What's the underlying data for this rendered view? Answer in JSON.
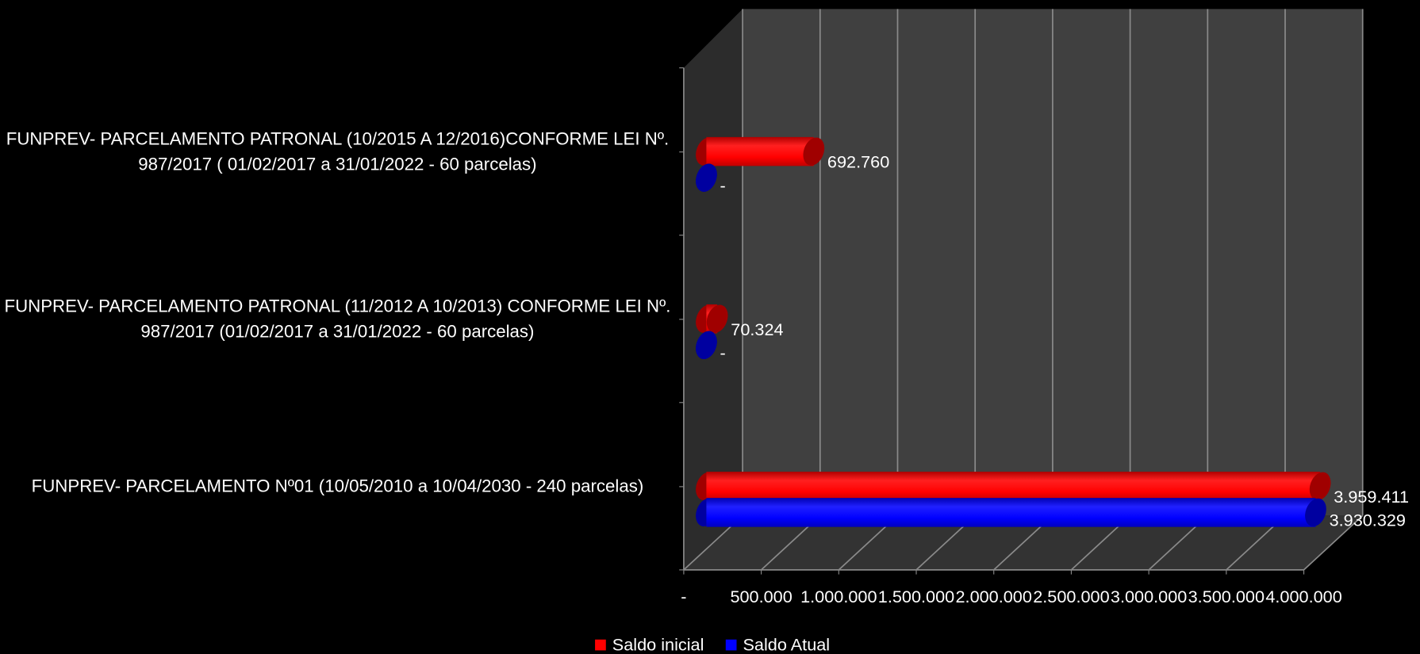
{
  "chart_data": {
    "type": "bar3d-horizontal",
    "categories": [
      "FUNPREV- PARCELAMENTO Nº01 (10/05/2010 a 10/04/2030 - 240 parcelas)",
      "FUNPREV- PARCELAMENTO PATRONAL (11/2012 A 10/2013) CONFORME LEI Nº. 987/2017 (01/02/2017 a 31/01/2022 - 60 parcelas)",
      "FUNPREV- PARCELAMENTO PATRONAL (10/2015 A 12/2016)CONFORME LEI Nº. 987/2017 ( 01/02/2017 a 31/01/2022 - 60 parcelas)"
    ],
    "series": [
      {
        "name": "Saldo inicial",
        "color": "#ff0000",
        "values": [
          3959411,
          70324,
          692760
        ],
        "value_labels": [
          "3.959.411",
          "70.324",
          "692.760"
        ]
      },
      {
        "name": "Saldo Atual",
        "color": "#0000ff",
        "values": [
          3930329,
          0,
          0
        ],
        "value_labels": [
          "3.930.329",
          "-",
          "-"
        ]
      }
    ],
    "xlim": [
      0,
      4000000
    ],
    "xticks": [
      {
        "value": 0,
        "label": "-"
      },
      {
        "value": 500000,
        "label": "500.000"
      },
      {
        "value": 1000000,
        "label": "1.000.000"
      },
      {
        "value": 1500000,
        "label": "1.500.000"
      },
      {
        "value": 2000000,
        "label": "2.000.000"
      },
      {
        "value": 2500000,
        "label": "2.500.000"
      },
      {
        "value": 3000000,
        "label": "3.000.000"
      },
      {
        "value": 3500000,
        "label": "3.500.000"
      },
      {
        "value": 4000000,
        "label": "4.000.000"
      }
    ],
    "grid": true,
    "legend": "bottom"
  }
}
